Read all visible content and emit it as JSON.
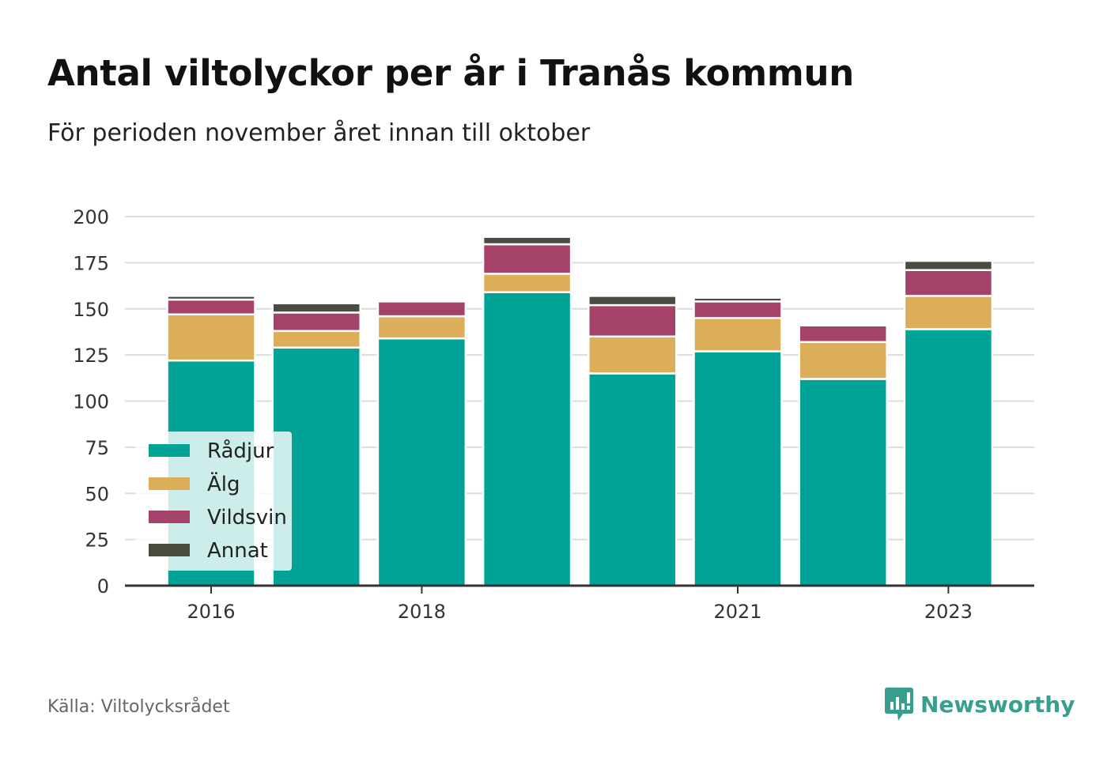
{
  "title": "Antal viltolyckor per år i Tranås kommun",
  "subtitle": "För perioden november året innan till oktober",
  "source": "Källa: Viltolycksrådet",
  "brand": "Newsworthy",
  "colors": {
    "radjur": "#00a396",
    "alg": "#dcae59",
    "vildsvin": "#a4426a",
    "annat": "#4b4c3f",
    "grid": "#dcdcdc",
    "axis": "#333333",
    "brand": "#3a9e8f"
  },
  "chart_data": {
    "type": "bar",
    "stacked": true,
    "categories": [
      "2016",
      "2017",
      "2018",
      "2019",
      "2020",
      "2021",
      "2022",
      "2023"
    ],
    "x_tick_labels": [
      "2016",
      "",
      "2018",
      "",
      "",
      "2021",
      "",
      "2023"
    ],
    "series": [
      {
        "name": "Rådjur",
        "color": "#00a396",
        "values": [
          122,
          129,
          134,
          159,
          115,
          127,
          112,
          139
        ]
      },
      {
        "name": "Älg",
        "color": "#dcae59",
        "values": [
          25,
          9,
          12,
          10,
          20,
          18,
          20,
          18
        ]
      },
      {
        "name": "Vildsvin",
        "color": "#a4426a",
        "values": [
          8,
          10,
          8,
          16,
          17,
          9,
          9,
          14
        ]
      },
      {
        "name": "Annat",
        "color": "#4b4c3f",
        "values": [
          2,
          5,
          0,
          4,
          5,
          2,
          1,
          5
        ]
      }
    ],
    "ylim": [
      0,
      200
    ],
    "yticks": [
      0,
      25,
      50,
      75,
      100,
      125,
      150,
      175,
      200
    ],
    "grid": true,
    "legend": "bottom-left"
  }
}
